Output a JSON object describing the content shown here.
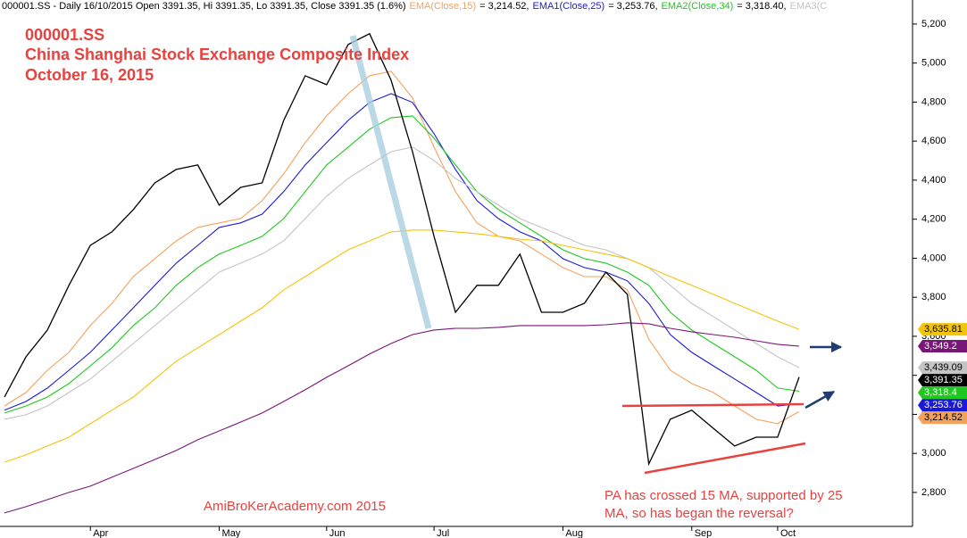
{
  "chart_data": {
    "type": "line",
    "header": "000001.SS - Daily 16/10/2015 Open 3391.35, Hi 3391.35, Lo 3391.35, Close 3391.35 (1.6%)",
    "title_lines": [
      "000001.SS",
      "China Shanghai Stock Exchange Composite Index",
      "October 16, 2015"
    ],
    "watermark": "AmiBroKerAcademy.com 2015",
    "note_lines": [
      "PA has crossed 15 MA, supported by 25",
      "MA, so has began the reversal?"
    ],
    "categories": [
      null,
      null,
      null,
      null,
      "Apr",
      null,
      null,
      null,
      null,
      null,
      "May",
      null,
      null,
      null,
      null,
      "Jun",
      null,
      null,
      null,
      null,
      "Jul",
      null,
      null,
      null,
      null,
      null,
      "Aug",
      null,
      null,
      null,
      null,
      null,
      "Sep",
      null,
      null,
      null,
      "Oct",
      null
    ],
    "ylim": [
      2626,
      5323
    ],
    "yticks": [
      {
        "value": 2800,
        "label": "2,800"
      },
      {
        "value": 3000,
        "label": "3,000"
      },
      {
        "value": 3200,
        "label": "3,200"
      },
      {
        "value": 3400,
        "label": "3,400"
      },
      {
        "value": 3600,
        "label": "3,600"
      },
      {
        "value": 3800,
        "label": "3,800"
      },
      {
        "value": 4000,
        "label": "4,000"
      },
      {
        "value": 4200,
        "label": "4,200"
      },
      {
        "value": 4400,
        "label": "4,400"
      },
      {
        "value": 4600,
        "label": "4,600"
      },
      {
        "value": 4800,
        "label": "4,800"
      },
      {
        "value": 5000,
        "label": "5,000"
      },
      {
        "value": 5200,
        "label": "5,200"
      }
    ],
    "y_axis_side": "right",
    "grid": false,
    "series": [
      {
        "color": "#000000",
        "values": [
          3289,
          3495,
          3632,
          3861,
          4066,
          4135,
          4249,
          4386,
          4455,
          4478,
          4272,
          4363,
          4386,
          4706,
          4935,
          4889,
          5095,
          5150,
          4912,
          4546,
          4112,
          3723,
          3861,
          3861,
          4021,
          3723,
          3723,
          3769,
          3929,
          3815,
          2946,
          3175,
          3221,
          3129,
          3038,
          3083,
          3083,
          3391.35
        ],
        "value_labels": [
          null,
          null,
          null,
          null,
          null,
          null,
          null,
          null,
          null,
          null,
          null,
          null,
          null,
          null,
          null,
          null,
          null,
          null,
          null,
          null,
          null,
          null,
          null,
          null,
          null,
          null,
          null,
          null,
          null,
          null,
          null,
          null,
          null,
          null,
          null,
          null,
          null,
          "3,391.35"
        ]
      },
      {
        "name": "EMA(Close,15)",
        "legend_text": "= 3,214.52,",
        "color": "#f4a15c",
        "values": [
          3243,
          3312,
          3426,
          3518,
          3655,
          3769,
          3906,
          3998,
          4089,
          4158,
          4181,
          4203,
          4295,
          4432,
          4592,
          4729,
          4843,
          4935,
          4958,
          4821,
          4569,
          4341,
          4181,
          4112,
          4089,
          4021,
          3952,
          3906,
          3906,
          3838,
          3586,
          3426,
          3358,
          3312,
          3243,
          3175,
          3152,
          3214.52
        ],
        "value_labels": [
          null,
          null,
          null,
          null,
          null,
          null,
          null,
          null,
          null,
          null,
          null,
          null,
          null,
          null,
          null,
          null,
          null,
          null,
          null,
          null,
          null,
          null,
          null,
          null,
          null,
          null,
          null,
          null,
          null,
          null,
          null,
          null,
          null,
          null,
          null,
          null,
          null,
          "3,214.52"
        ]
      },
      {
        "name": "EMA1(Close,25)",
        "legend_text": "= 3,253.76,",
        "color": "#1a1ad6",
        "values": [
          3221,
          3266,
          3335,
          3426,
          3518,
          3632,
          3746,
          3861,
          3975,
          4066,
          4158,
          4181,
          4226,
          4341,
          4478,
          4592,
          4706,
          4798,
          4843,
          4798,
          4638,
          4455,
          4295,
          4203,
          4135,
          4089,
          3998,
          3952,
          3929,
          3884,
          3769,
          3609,
          3518,
          3449,
          3381,
          3312,
          3243,
          3253.76
        ],
        "value_labels": [
          null,
          null,
          null,
          null,
          null,
          null,
          null,
          null,
          null,
          null,
          null,
          null,
          null,
          null,
          null,
          null,
          null,
          null,
          null,
          null,
          null,
          null,
          null,
          null,
          null,
          null,
          null,
          null,
          null,
          null,
          null,
          null,
          null,
          null,
          null,
          null,
          null,
          "3,253.76"
        ]
      },
      {
        "name": "EMA2(Close,34)",
        "legend_text": "= 3,318.40,",
        "color": "#1ec81e",
        "values": [
          3207,
          3243,
          3289,
          3358,
          3449,
          3541,
          3655,
          3746,
          3861,
          3952,
          4021,
          4066,
          4112,
          4203,
          4341,
          4478,
          4569,
          4661,
          4720,
          4729,
          4615,
          4478,
          4341,
          4249,
          4181,
          4112,
          4043,
          3998,
          3975,
          3929,
          3861,
          3723,
          3632,
          3563,
          3495,
          3426,
          3335,
          3318.4
        ],
        "value_labels": [
          null,
          null,
          null,
          null,
          null,
          null,
          null,
          null,
          null,
          null,
          null,
          null,
          null,
          null,
          null,
          null,
          null,
          null,
          null,
          null,
          null,
          null,
          null,
          null,
          null,
          null,
          null,
          null,
          null,
          null,
          null,
          null,
          null,
          null,
          null,
          null,
          null,
          "3,318.4"
        ]
      },
      {
        "name": "EMA3(C",
        "color": "#c4c4c4",
        "values": [
          3175,
          3198,
          3243,
          3312,
          3381,
          3472,
          3563,
          3655,
          3746,
          3838,
          3929,
          3975,
          4021,
          4089,
          4203,
          4318,
          4409,
          4478,
          4546,
          4569,
          4501,
          4409,
          4341,
          4272,
          4203,
          4158,
          4112,
          4066,
          4043,
          3998,
          3952,
          3861,
          3769,
          3701,
          3632,
          3563,
          3495,
          3439.09
        ],
        "value_labels": [
          null,
          null,
          null,
          null,
          null,
          null,
          null,
          null,
          null,
          null,
          null,
          null,
          null,
          null,
          null,
          null,
          null,
          null,
          null,
          null,
          null,
          null,
          null,
          null,
          null,
          null,
          null,
          null,
          null,
          null,
          null,
          null,
          null,
          null,
          null,
          null,
          null,
          "3,439.09"
        ]
      },
      {
        "color": "#f2c40a",
        "values": [
          2955,
          2992,
          3038,
          3083,
          3152,
          3221,
          3289,
          3381,
          3472,
          3541,
          3609,
          3678,
          3746,
          3838,
          3906,
          3975,
          4043,
          4089,
          4135,
          4144,
          4144,
          4135,
          4126,
          4112,
          4098,
          4089,
          4066,
          4043,
          4021,
          3998,
          3952,
          3906,
          3861,
          3815,
          3769,
          3723,
          3678,
          3635.81
        ],
        "value_labels": [
          null,
          null,
          null,
          null,
          null,
          null,
          null,
          null,
          null,
          null,
          null,
          null,
          null,
          null,
          null,
          null,
          null,
          null,
          null,
          null,
          null,
          null,
          null,
          null,
          null,
          null,
          null,
          null,
          null,
          null,
          null,
          null,
          null,
          null,
          null,
          null,
          null,
          "3,635.81"
        ]
      },
      {
        "color": "#7a157a",
        "values": [
          2695,
          2727,
          2763,
          2800,
          2832,
          2878,
          2923,
          2969,
          3015,
          3070,
          3115,
          3161,
          3207,
          3266,
          3326,
          3390,
          3449,
          3509,
          3563,
          3609,
          3632,
          3641,
          3641,
          3646,
          3655,
          3655,
          3655,
          3655,
          3659,
          3669,
          3664,
          3641,
          3623,
          3609,
          3595,
          3577,
          3559,
          3549.2
        ],
        "value_labels": [
          null,
          null,
          null,
          null,
          null,
          null,
          null,
          null,
          null,
          null,
          null,
          null,
          null,
          null,
          null,
          null,
          null,
          null,
          null,
          null,
          null,
          null,
          null,
          null,
          null,
          null,
          null,
          null,
          null,
          null,
          null,
          null,
          null,
          null,
          null,
          null,
          null,
          "3,549.2"
        ]
      }
    ]
  }
}
